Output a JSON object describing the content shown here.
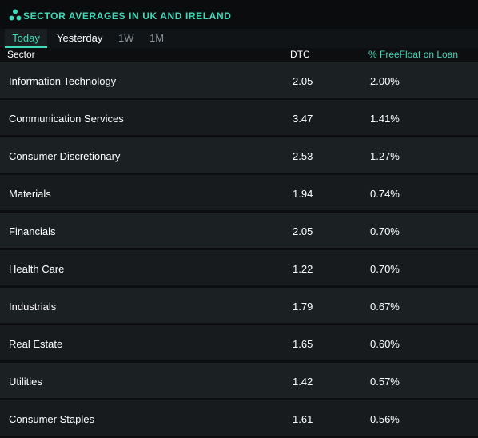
{
  "header": {
    "title": "SECTOR AVERAGES IN UK AND IRELAND",
    "icon": "app-logo-icon"
  },
  "tabs": [
    {
      "label": "Today",
      "active": true
    },
    {
      "label": "Yesterday"
    },
    {
      "label": "1W"
    },
    {
      "label": "1M"
    }
  ],
  "columns": {
    "sector": "Sector",
    "dtc": "DTC",
    "float": "% FreeFloat on Loan"
  },
  "rows": [
    {
      "sector": "Information Technology",
      "dtc": "2.05",
      "float": "2.00%"
    },
    {
      "sector": "Communication Services",
      "dtc": "3.47",
      "float": "1.41%"
    },
    {
      "sector": "Consumer Discretionary",
      "dtc": "2.53",
      "float": "1.27%"
    },
    {
      "sector": "Materials",
      "dtc": "1.94",
      "float": "0.74%"
    },
    {
      "sector": "Financials",
      "dtc": "2.05",
      "float": "0.70%"
    },
    {
      "sector": "Health Care",
      "dtc": "1.22",
      "float": "0.70%"
    },
    {
      "sector": "Industrials",
      "dtc": "1.79",
      "float": "0.67%"
    },
    {
      "sector": "Real Estate",
      "dtc": "1.65",
      "float": "0.60%"
    },
    {
      "sector": "Utilities",
      "dtc": "1.42",
      "float": "0.57%"
    },
    {
      "sector": "Consumer Staples",
      "dtc": "1.61",
      "float": "0.56%"
    }
  ],
  "colors": {
    "accent": "#3fd8b8",
    "background": "#0c0e10",
    "row": "#1b2023",
    "row_alt": "#171b1e"
  }
}
